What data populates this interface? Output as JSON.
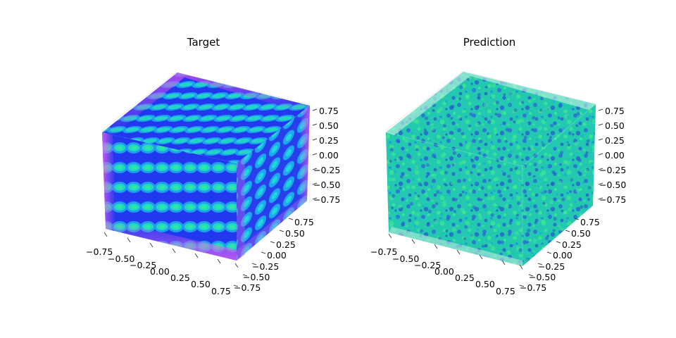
{
  "figure": {
    "layout": "two 3D scatter subplots side by side"
  },
  "chart_data": [
    {
      "type": "scatter",
      "projection": "3d",
      "title": "Target",
      "xlabel": "",
      "ylabel": "",
      "zlabel": "",
      "xlim": [
        -0.75,
        0.75
      ],
      "ylim": [
        -0.75,
        0.75
      ],
      "zlim": [
        -0.75,
        0.75
      ],
      "x_ticks": [
        "−0.75",
        "−0.50",
        "−0.25",
        "0.00",
        "0.25",
        "0.50",
        "0.75"
      ],
      "y_ticks": [
        "−0.75",
        "−0.50",
        "−0.25",
        "0.00",
        "0.25",
        "0.50",
        "0.75"
      ],
      "z_ticks": [
        "−0.75",
        "−0.50",
        "−0.25",
        "0.00",
        "0.25",
        "0.50",
        "0.75"
      ],
      "grid": true,
      "description_of_values": "dense cube of points; structured periodic pattern of cyan/green blobs inside blue bands, magenta near edges",
      "colors": {
        "edge": "#d24ae6",
        "band": "#2a3cf0",
        "core": "#20e0b0",
        "mid": "#1e9ef0"
      }
    },
    {
      "type": "scatter",
      "projection": "3d",
      "title": "Prediction",
      "xlabel": "",
      "ylabel": "",
      "zlabel": "",
      "xlim": [
        -0.75,
        0.75
      ],
      "ylim": [
        -0.75,
        0.75
      ],
      "zlim": [
        -0.75,
        0.75
      ],
      "x_ticks": [
        "−0.75",
        "−0.50",
        "−0.25",
        "0.00",
        "0.25",
        "0.50",
        "0.75"
      ],
      "y_ticks": [
        "−0.75",
        "−0.50",
        "−0.25",
        "0.00",
        "0.25",
        "0.50",
        "0.75"
      ],
      "z_ticks": [
        "−0.75",
        "−0.50",
        "−0.25",
        "0.00",
        "0.25",
        "0.50",
        "0.75"
      ],
      "grid": true,
      "description_of_values": "dense cube of points; noisy mix of green, cyan and blue with no clear structure",
      "colors": {
        "base": "#20c8a8",
        "green": "#3ce890",
        "blue": "#2a5ad8"
      }
    }
  ]
}
